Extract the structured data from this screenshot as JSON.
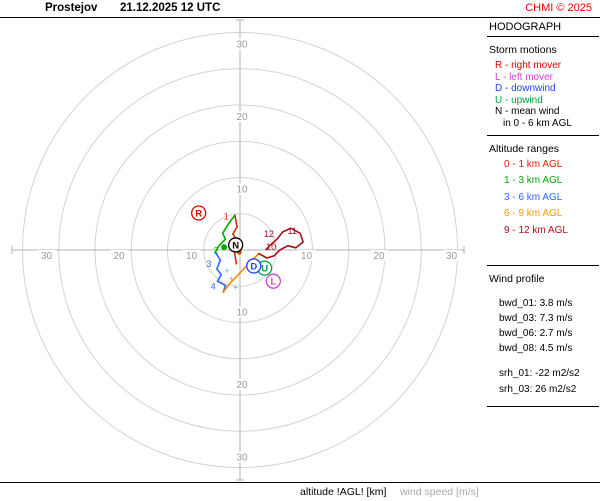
{
  "header": {
    "station": "Prostejov",
    "datetime": "21.12.2025 12 UTC",
    "copyright": "CHMI © 2025"
  },
  "panel": {
    "title": "HODOGRAPH",
    "storm_motions": {
      "heading": "Storm motions",
      "items": [
        {
          "label": "R - right mover",
          "color": "#dd0000"
        },
        {
          "label": "L - left mover",
          "color": "#cc44cc"
        },
        {
          "label": "D - downwind",
          "color": "#2244ee"
        },
        {
          "label": "U - upwind",
          "color": "#00a040"
        },
        {
          "label": "N - mean wind",
          "color": "#000000"
        }
      ],
      "mean_wind_note": "in 0 - 6 km AGL"
    },
    "altitude_ranges": {
      "heading": "Altitude ranges",
      "items": [
        {
          "label": "0 - 1 km AGL",
          "color": "#dd2200"
        },
        {
          "label": "1 - 3 km AGL",
          "color": "#00aa00"
        },
        {
          "label": "3 - 6 km AGL",
          "color": "#3366ff"
        },
        {
          "label": "6 - 9 km AGL",
          "color": "#ff9900"
        },
        {
          "label": "9 - 12 km AGL",
          "color": "#b01020"
        }
      ]
    },
    "wind_profile": {
      "heading": "Wind profile",
      "bwd_items": [
        "bwd_01: 3.8 m/s",
        "bwd_03: 7.3 m/s",
        "bwd_06: 2.7 m/s",
        "bwd_08: 4.5 m/s"
      ],
      "srh_items": [
        "srh_01: -22 m2/s2",
        "srh_03: 26 m2/s2"
      ]
    }
  },
  "footer": {
    "altitude_label": "altitude !AGL! [km]",
    "wind_speed_label": "wind speed [m/s]"
  },
  "chart_data": {
    "type": "line",
    "subtype": "hodograph",
    "title": "Prostejov 21.12.2025 12 UTC",
    "units": "m/s",
    "axis": {
      "max": 30,
      "ring_step": 5,
      "labeled_ticks": [
        10,
        20,
        30
      ],
      "grid": true
    },
    "series": [
      {
        "name": "0 - 1 km AGL",
        "color": "#cc3300",
        "points": [
          [
            -0.5,
            -1.9
          ],
          [
            -0.9,
            0.6
          ],
          [
            -0.3,
            1.2
          ],
          [
            -1.0,
            2.2
          ],
          [
            -0.4,
            3.2
          ],
          [
            -0.7,
            4.8
          ]
        ]
      },
      {
        "name": "1 - 3 km AGL",
        "color": "#00aa00",
        "points": [
          [
            -0.7,
            4.8
          ],
          [
            -1.6,
            3.6
          ],
          [
            -2.4,
            2.3
          ],
          [
            -2.0,
            1.5
          ],
          [
            -2.9,
            0.6
          ],
          [
            -3.4,
            -0.3
          ]
        ]
      },
      {
        "name": "3 - 6 km AGL",
        "color": "#3366ff",
        "points": [
          [
            -3.4,
            -0.3
          ],
          [
            -2.7,
            -1.4
          ],
          [
            -3.2,
            -2.6
          ],
          [
            -2.6,
            -3.4
          ],
          [
            -3.1,
            -4.3
          ],
          [
            -2.0,
            -4.9
          ],
          [
            -2.3,
            -5.8
          ]
        ]
      },
      {
        "name": "6 - 9 km AGL",
        "color": "#ff8800",
        "points": [
          [
            -2.3,
            -5.8
          ],
          [
            -1.4,
            -4.6
          ],
          [
            -0.4,
            -3.6
          ],
          [
            0.6,
            -2.5
          ],
          [
            1.5,
            -1.5
          ],
          [
            2.6,
            -0.5
          ]
        ]
      },
      {
        "name": "9 - 12 km AGL",
        "color": "#a01020",
        "points": [
          [
            2.6,
            -0.5
          ],
          [
            3.7,
            -1.1
          ],
          [
            4.7,
            -0.8
          ],
          [
            5.5,
            0.0
          ],
          [
            6.6,
            0.6
          ],
          [
            7.7,
            0.3
          ],
          [
            8.7,
            1.1
          ],
          [
            8.3,
            2.3
          ],
          [
            7.0,
            3.0
          ],
          [
            5.9,
            2.5
          ],
          [
            5.1,
            1.5
          ],
          [
            4.3,
            0.8
          ],
          [
            3.6,
            0.1
          ]
        ]
      }
    ],
    "storm_markers": [
      {
        "label": "R",
        "color": "#dd0000",
        "u": -5.7,
        "v": 5.1
      },
      {
        "label": "N",
        "color": "#000000",
        "u": -0.6,
        "v": 0.7
      },
      {
        "label": "U",
        "color": "#00a040",
        "u": 3.4,
        "v": -2.5
      },
      {
        "label": "D",
        "color": "#2244ee",
        "u": 1.9,
        "v": -2.2
      },
      {
        "label": "L",
        "color": "#cc44cc",
        "u": 4.6,
        "v": -4.3
      }
    ],
    "altitude_labels": [
      {
        "text": "1",
        "color": "#cc3300",
        "u": -1.9,
        "v": 4.6
      },
      {
        "text": "2",
        "color": "#00aa00",
        "u": -3.3,
        "v": -0.1
      },
      {
        "text": "3",
        "color": "#3366ff",
        "u": -4.3,
        "v": -1.9
      },
      {
        "text": "4",
        "color": "#3366ff",
        "u": -3.7,
        "v": -5.0
      },
      {
        "text": "12",
        "color": "#a01020",
        "u": 4.0,
        "v": 2.2
      },
      {
        "text": "11",
        "color": "#a01020",
        "u": 7.2,
        "v": 2.6
      },
      {
        "text": "10",
        "color": "#a01020",
        "u": 4.3,
        "v": 0.4
      }
    ],
    "plus_markers": {
      "color": "#66aaff",
      "points": [
        [
          -1.8,
          -2.9
        ],
        [
          -1.2,
          -4.0
        ],
        [
          -0.6,
          -5.2
        ]
      ]
    },
    "dots": [
      {
        "color": "#00aa00",
        "u": -2.2,
        "v": 0.4,
        "r": 3
      },
      {
        "color": "#cc5500",
        "u": -0.1,
        "v": -0.3,
        "r": 2.5
      }
    ]
  }
}
